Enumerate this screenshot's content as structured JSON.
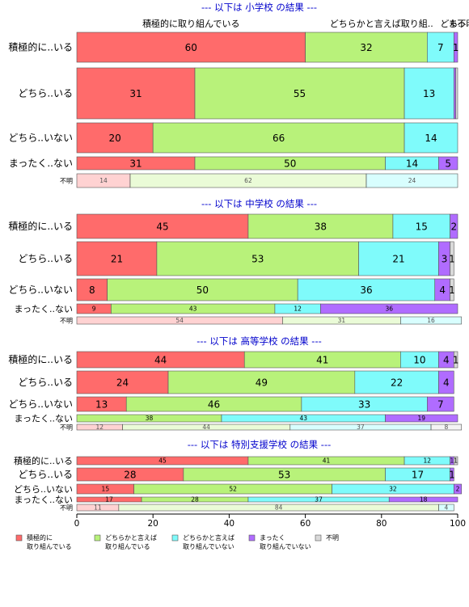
{
  "colors": {
    "cat1": "#FF6B6B",
    "cat2": "#B8F27A",
    "cat3": "#7FFBFB",
    "cat4": "#B06CFF",
    "cat5": "#D9D9D9",
    "title": "#0000CC",
    "border": "#555555"
  },
  "legend": [
    {
      "line1": "積極的に",
      "line2": "取り組んでいる",
      "color_key": "cat1"
    },
    {
      "line1": "どちらかと言えば",
      "line2": "取り組んでいる",
      "color_key": "cat2"
    },
    {
      "line1": "どちらかと言えば",
      "line2": "取り組んでいない",
      "color_key": "cat3"
    },
    {
      "line1": "まったく",
      "line2": "取り組んでいない",
      "color_key": "cat4"
    },
    {
      "line1": "不明",
      "line2": "",
      "color_key": "cat5"
    }
  ],
  "chart_data": {
    "type": "bar",
    "orientation": "horizontal-stacked-mosaic",
    "xlim": [
      0,
      100
    ],
    "xticks": [
      0,
      20,
      40,
      60,
      80,
      100
    ],
    "top_labels": [
      {
        "text": "積極的に取り組んでいる",
        "x": 30
      },
      {
        "text": "どちらかと言えば取り組..",
        "x": 80
      },
      {
        "text": "どち..",
        "x": 98.5
      },
      {
        "text": "まっ..",
        "x": 100.6
      },
      {
        "text": "不明",
        "x": 102.2
      }
    ],
    "panels": [
      {
        "title": "--- 以下は 小学校 の結果 ---",
        "rows": [
          {
            "label": "積極的に..いる",
            "values": [
              60,
              32,
              7,
              1,
              0
            ],
            "labels": [
              "60",
              "32",
              "7",
              "1",
              ""
            ]
          },
          {
            "label": "どちら..いる",
            "values": [
              31,
              55,
              13,
              0.5,
              0.5
            ],
            "labels": [
              "31",
              "55",
              "13",
              "",
              ""
            ]
          },
          {
            "label": "どちら..いない",
            "values": [
              20,
              66,
              14,
              0,
              0
            ],
            "labels": [
              "20",
              "66",
              "14",
              "",
              ""
            ]
          },
          {
            "label": "まったく..ない",
            "values": [
              31,
              50,
              14,
              5,
              0
            ],
            "labels": [
              "31",
              "50",
              "14",
              "5",
              ""
            ]
          },
          {
            "label": "不明",
            "values": [
              14,
              62,
              24,
              0,
              0
            ],
            "labels": [
              "14",
              "62",
              "24",
              "",
              ""
            ]
          }
        ]
      },
      {
        "title": "--- 以下は 中学校 の結果 ---",
        "rows": [
          {
            "label": "積極的に..いる",
            "values": [
              45,
              38,
              15,
              2,
              0
            ],
            "labels": [
              "45",
              "38",
              "15",
              "2",
              ""
            ]
          },
          {
            "label": "どちら..いる",
            "values": [
              21,
              53,
              21,
              3,
              1
            ],
            "labels": [
              "21",
              "53",
              "21",
              "3",
              "1"
            ]
          },
          {
            "label": "どちら..いない",
            "values": [
              8,
              50,
              36,
              4,
              1
            ],
            "labels": [
              "8",
              "50",
              "36",
              "4",
              "1"
            ]
          },
          {
            "label": "まったく..ない",
            "values": [
              9,
              43,
              12,
              36,
              0
            ],
            "labels": [
              "9",
              "43",
              "12",
              "36",
              ""
            ]
          },
          {
            "label": "不明",
            "values": [
              54,
              31,
              16,
              0,
              0
            ],
            "labels": [
              "54",
              "31",
              "16",
              "",
              ""
            ]
          }
        ]
      },
      {
        "title": "--- 以下は 高等学校 の結果 ---",
        "rows": [
          {
            "label": "積極的に..いる",
            "values": [
              44,
              41,
              10,
              4,
              1
            ],
            "labels": [
              "44",
              "41",
              "10",
              "4",
              "1"
            ]
          },
          {
            "label": "どちら..いる",
            "values": [
              24,
              49,
              22,
              4,
              0
            ],
            "labels": [
              "24",
              "49",
              "22",
              "4",
              ""
            ]
          },
          {
            "label": "どちら..いない",
            "values": [
              13,
              46,
              33,
              7,
              0
            ],
            "labels": [
              "13",
              "46",
              "33",
              "7",
              ""
            ]
          },
          {
            "label": "まったく..ない",
            "values": [
              0,
              38,
              43,
              19,
              0
            ],
            "labels": [
              "",
              "38",
              "43",
              "19",
              ""
            ]
          },
          {
            "label": "不明",
            "values": [
              12,
              44,
              37,
              0,
              8
            ],
            "labels": [
              "12",
              "44",
              "37",
              "",
              "8"
            ]
          }
        ]
      },
      {
        "title": "--- 以下は 特別支援学校 の結果 ---",
        "rows": [
          {
            "label": "積極的に..いる",
            "values": [
              45,
              41,
              12,
              1,
              1
            ],
            "labels": [
              "45",
              "41",
              "12",
              "1",
              "1"
            ]
          },
          {
            "label": "どちら..いる",
            "values": [
              28,
              53,
              17,
              1,
              0
            ],
            "labels": [
              "28",
              "53",
              "17",
              "1",
              ""
            ]
          },
          {
            "label": "どちら..いない",
            "values": [
              15,
              52,
              32,
              2,
              0
            ],
            "labels": [
              "15",
              "52",
              "32",
              "2",
              ""
            ]
          },
          {
            "label": "まったく..ない",
            "values": [
              17,
              28,
              37,
              18,
              0
            ],
            "labels": [
              "17",
              "28",
              "37",
              "18",
              ""
            ]
          },
          {
            "label": "不明",
            "values": [
              11,
              84,
              4,
              0,
              0
            ],
            "labels": [
              "11",
              "84",
              "4",
              "",
              ""
            ]
          }
        ]
      }
    ]
  }
}
